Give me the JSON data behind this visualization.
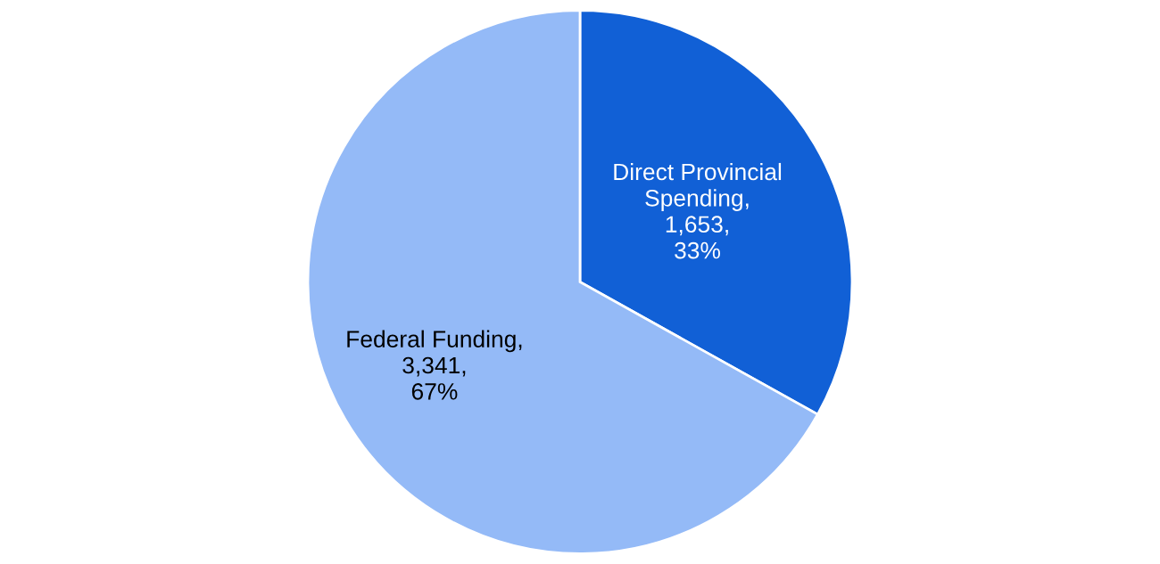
{
  "chart_data": {
    "type": "pie",
    "categories": [
      "Direct Provincial\nSpending",
      "Federal Funding"
    ],
    "values": [
      1653,
      3341
    ],
    "value_labels": [
      ",\n1,653,\n33%",
      ",\n3,341,\n67%"
    ],
    "colors": [
      "#1160d6",
      "#94baf7"
    ],
    "legend": false
  }
}
